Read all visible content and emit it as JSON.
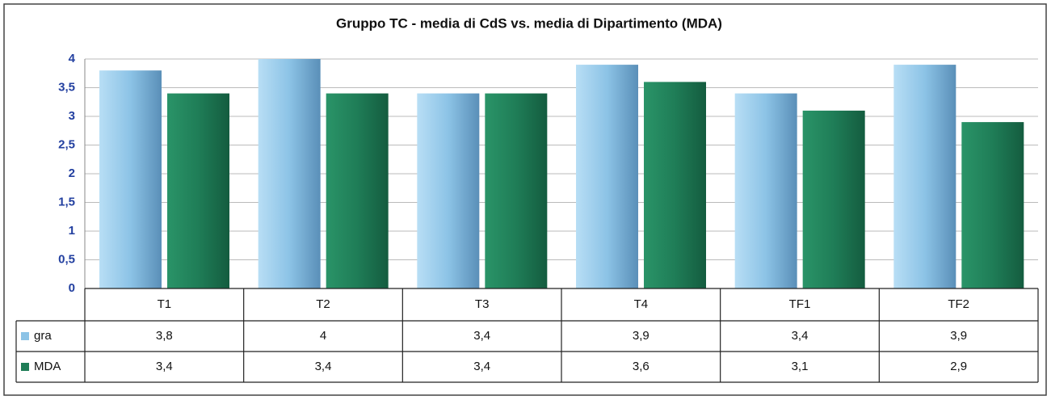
{
  "chart_data": {
    "type": "bar",
    "title": "Gruppo TC - media di CdS vs. media di Dipartimento (MDA)",
    "categories": [
      "T1",
      "T2",
      "T3",
      "T4",
      "TF1",
      "TF2"
    ],
    "series": [
      {
        "name": "gra",
        "color": "#8cc3e6",
        "values": [
          3.8,
          4,
          3.4,
          3.9,
          3.4,
          3.9
        ],
        "value_labels": [
          "3,8",
          "4",
          "3,4",
          "3,9",
          "3,4",
          "3,9"
        ]
      },
      {
        "name": "MDA",
        "color": "#1f7d57",
        "values": [
          3.4,
          3.4,
          3.4,
          3.6,
          3.1,
          2.9
        ],
        "value_labels": [
          "3,4",
          "3,4",
          "3,4",
          "3,6",
          "3,1",
          "2,9"
        ]
      }
    ],
    "ylim": [
      0,
      4
    ],
    "yticks": [
      0,
      {
        "value": 0.5,
        "label": "0,5"
      },
      1,
      {
        "value": 1.5,
        "label": "1,5"
      },
      2,
      {
        "value": 2.5,
        "label": "2,5"
      },
      3,
      {
        "value": 3.5,
        "label": "3,5"
      },
      4
    ],
    "grid": true
  }
}
